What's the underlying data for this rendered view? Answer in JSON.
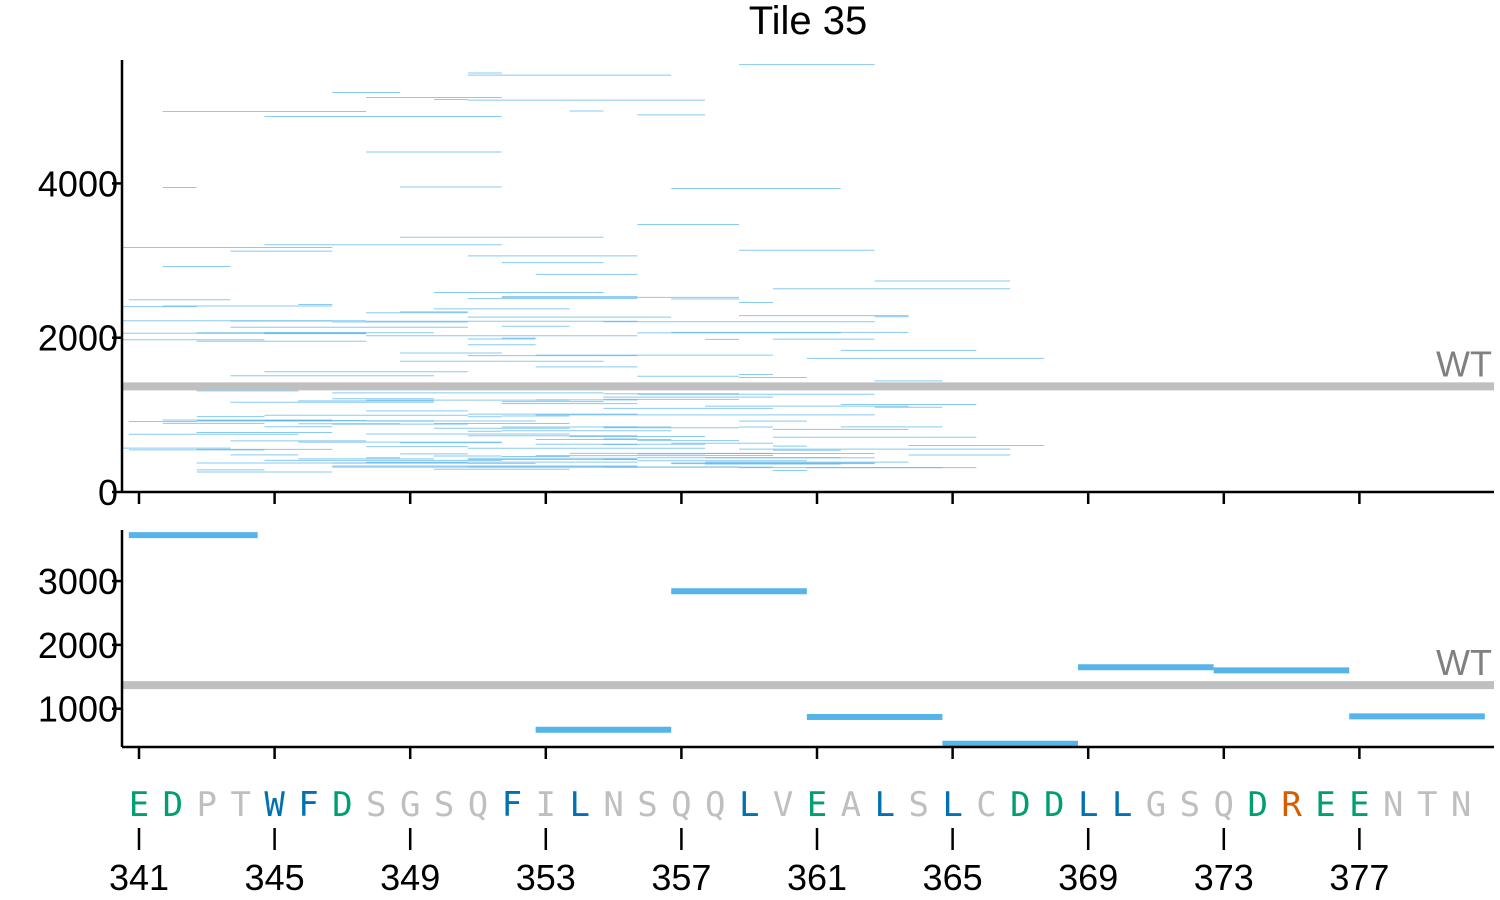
{
  "chart_data": [
    {
      "type": "line",
      "panel": "top",
      "title": "Tile 35",
      "ylim": [
        0,
        5600
      ],
      "yticks": [
        0,
        2000,
        4000
      ],
      "wt_value": 1370,
      "wt_label": "WT",
      "series_color": "#56b4e9",
      "wt_color": "#bfbfbf",
      "segment_counts": [
        25,
        35,
        45,
        40,
        35,
        22
      ],
      "note_values": "many overlapping short segments spanning residues 341-380 with y from ~200 to ~5600"
    },
    {
      "type": "line",
      "panel": "bottom",
      "ylim": [
        400,
        3800
      ],
      "yticks": [
        1000,
        2000,
        3000
      ],
      "wt_value": 1370,
      "wt_label": "WT",
      "series_color": "#56b4e9",
      "segments": [
        {
          "x0": 340.7,
          "x1": 344.5,
          "y": 3720
        },
        {
          "x0": 352.7,
          "x1": 356.7,
          "y": 670
        },
        {
          "x0": 356.7,
          "x1": 360.7,
          "y": 2840
        },
        {
          "x0": 360.7,
          "x1": 364.7,
          "y": 870
        },
        {
          "x0": 364.7,
          "x1": 368.7,
          "y": 450
        },
        {
          "x0": 368.7,
          "x1": 372.7,
          "y": 1650
        },
        {
          "x0": 372.7,
          "x1": 376.7,
          "y": 1600
        },
        {
          "x0": 376.7,
          "x1": 380.7,
          "y": 880
        }
      ]
    }
  ],
  "xaxis": {
    "start": 341,
    "tick_labels": [
      "341",
      "345",
      "349",
      "353",
      "357",
      "361",
      "365",
      "369",
      "373",
      "377"
    ]
  },
  "sequence": [
    {
      "aa": "E",
      "color": "#009e73"
    },
    {
      "aa": "D",
      "color": "#009e73"
    },
    {
      "aa": "P",
      "color": "#bfbfbf"
    },
    {
      "aa": "T",
      "color": "#bfbfbf"
    },
    {
      "aa": "W",
      "color": "#0072b2"
    },
    {
      "aa": "F",
      "color": "#0072b2"
    },
    {
      "aa": "D",
      "color": "#009e73"
    },
    {
      "aa": "S",
      "color": "#bfbfbf"
    },
    {
      "aa": "G",
      "color": "#bfbfbf"
    },
    {
      "aa": "S",
      "color": "#bfbfbf"
    },
    {
      "aa": "Q",
      "color": "#bfbfbf"
    },
    {
      "aa": "F",
      "color": "#0072b2"
    },
    {
      "aa": "I",
      "color": "#bfbfbf"
    },
    {
      "aa": "L",
      "color": "#0072b2"
    },
    {
      "aa": "N",
      "color": "#bfbfbf"
    },
    {
      "aa": "S",
      "color": "#bfbfbf"
    },
    {
      "aa": "Q",
      "color": "#bfbfbf"
    },
    {
      "aa": "Q",
      "color": "#bfbfbf"
    },
    {
      "aa": "L",
      "color": "#0072b2"
    },
    {
      "aa": "V",
      "color": "#bfbfbf"
    },
    {
      "aa": "E",
      "color": "#009e73"
    },
    {
      "aa": "A",
      "color": "#bfbfbf"
    },
    {
      "aa": "L",
      "color": "#0072b2"
    },
    {
      "aa": "S",
      "color": "#bfbfbf"
    },
    {
      "aa": "L",
      "color": "#0072b2"
    },
    {
      "aa": "C",
      "color": "#bfbfbf"
    },
    {
      "aa": "D",
      "color": "#009e73"
    },
    {
      "aa": "D",
      "color": "#009e73"
    },
    {
      "aa": "L",
      "color": "#0072b2"
    },
    {
      "aa": "L",
      "color": "#0072b2"
    },
    {
      "aa": "G",
      "color": "#bfbfbf"
    },
    {
      "aa": "S",
      "color": "#bfbfbf"
    },
    {
      "aa": "Q",
      "color": "#bfbfbf"
    },
    {
      "aa": "D",
      "color": "#009e73"
    },
    {
      "aa": "R",
      "color": "#d55e00"
    },
    {
      "aa": "E",
      "color": "#009e73"
    },
    {
      "aa": "E",
      "color": "#009e73"
    },
    {
      "aa": "N",
      "color": "#bfbfbf"
    },
    {
      "aa": "T",
      "color": "#bfbfbf"
    },
    {
      "aa": "N",
      "color": "#bfbfbf"
    }
  ]
}
